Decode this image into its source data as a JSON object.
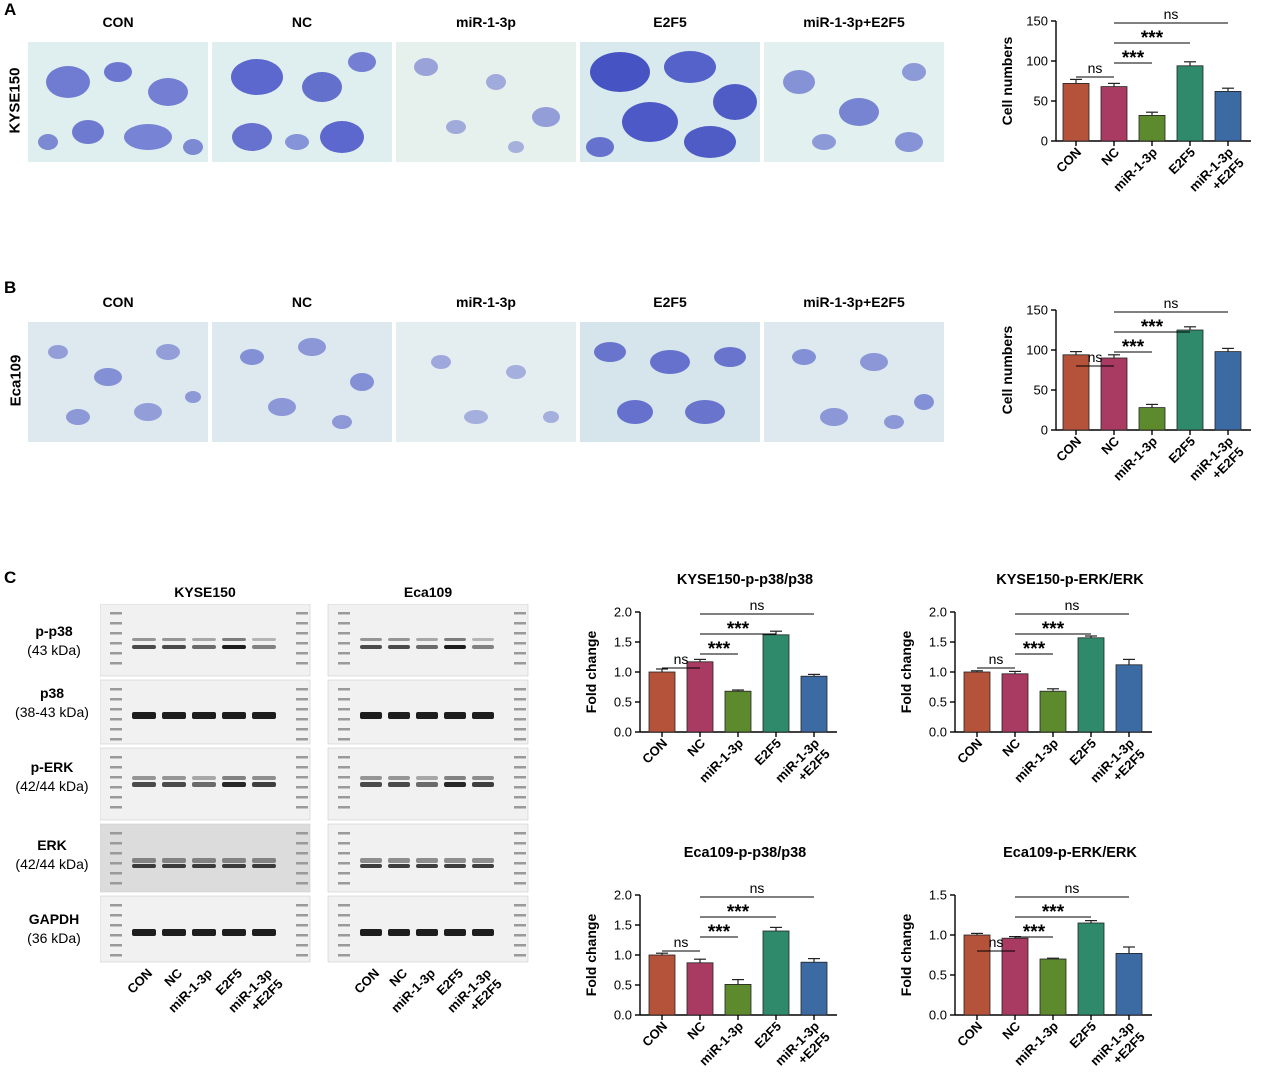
{
  "panels": {
    "A": {
      "letter": "A",
      "row_label": "KYSE150"
    },
    "B": {
      "letter": "B",
      "row_label": "Eca109"
    },
    "C": {
      "letter": "C"
    }
  },
  "photo_titles": [
    "CON",
    "NC",
    "miR-1-3p",
    "E2F5",
    "miR-1-3p+E2F5"
  ],
  "blot": {
    "titles": [
      "KYSE150",
      "Eca109"
    ],
    "rows": [
      {
        "name": "p-p38",
        "kda": "(43 kDa)"
      },
      {
        "name": "p38",
        "kda": "(38-43 kDa)"
      },
      {
        "name": "p-ERK",
        "kda": "(42/44 kDa)"
      },
      {
        "name": "ERK",
        "kda": "(42/44 kDa)"
      },
      {
        "name": "GAPDH",
        "kda": "(36 kDa)"
      }
    ],
    "lanes": [
      "CON",
      "NC",
      "miR-1-3p",
      "E2F5",
      "miR-1-3p\n+E2F5"
    ]
  },
  "chart_data": [
    {
      "id": "A",
      "type": "bar",
      "title": "",
      "categories": [
        "CON",
        "NC",
        "miR-1-3p",
        "E2F5",
        "miR-1-3p\n+E2F5"
      ],
      "values": [
        72,
        68,
        32,
        94,
        62
      ],
      "errors": [
        5,
        4,
        4,
        5,
        4
      ],
      "ylabel": "Cell numbers",
      "ylim": [
        0,
        150
      ],
      "yticks": [
        "0",
        "50",
        "100",
        "150"
      ],
      "colors": [
        "#b5533a",
        "#a93a62",
        "#5e8a2e",
        "#2f8a6b",
        "#3c6aa3"
      ],
      "significance": [
        {
          "from": 1,
          "to": 4,
          "label": "ns"
        },
        {
          "from": 1,
          "to": 3,
          "label": "***"
        },
        {
          "from": 1,
          "to": 2,
          "label": "***"
        },
        {
          "from": 0,
          "to": 1,
          "label": "ns"
        }
      ]
    },
    {
      "id": "B",
      "type": "bar",
      "title": "",
      "categories": [
        "CON",
        "NC",
        "miR-1-3p",
        "E2F5",
        "miR-1-3p\n+E2F5"
      ],
      "values": [
        94,
        90,
        28,
        125,
        98
      ],
      "errors": [
        4,
        4,
        4,
        4,
        4
      ],
      "ylabel": "Cell numbers",
      "ylim": [
        0,
        150
      ],
      "yticks": [
        "0",
        "50",
        "100",
        "150"
      ],
      "colors": [
        "#b5533a",
        "#a93a62",
        "#5e8a2e",
        "#2f8a6b",
        "#3c6aa3"
      ],
      "significance": [
        {
          "from": 1,
          "to": 4,
          "label": "ns"
        },
        {
          "from": 1,
          "to": 3,
          "label": "***"
        },
        {
          "from": 1,
          "to": 2,
          "label": "***"
        },
        {
          "from": 0,
          "to": 1,
          "label": "ns"
        }
      ]
    },
    {
      "id": "C1",
      "type": "bar",
      "title": "KYSE150-p-p38/p38",
      "categories": [
        "CON",
        "NC",
        "miR-1-3p",
        "E2F5",
        "miR-1-3p\n+E2F5"
      ],
      "values": [
        1.0,
        1.17,
        0.68,
        1.62,
        0.93
      ],
      "errors": [
        0.05,
        0.04,
        0.02,
        0.06,
        0.03
      ],
      "ylabel": "Fold change",
      "ylim": [
        0,
        2.0
      ],
      "yticks": [
        "0.0",
        "0.5",
        "1.0",
        "1.5",
        "2.0"
      ],
      "colors": [
        "#b5533a",
        "#a93a62",
        "#5e8a2e",
        "#2f8a6b",
        "#3c6aa3"
      ],
      "significance": [
        {
          "from": 1,
          "to": 4,
          "label": "ns"
        },
        {
          "from": 1,
          "to": 3,
          "label": "***"
        },
        {
          "from": 1,
          "to": 2,
          "label": "***"
        },
        {
          "from": 0,
          "to": 1,
          "label": "ns"
        }
      ]
    },
    {
      "id": "C2",
      "type": "bar",
      "title": "KYSE150-p-ERK/ERK",
      "categories": [
        "CON",
        "NC",
        "miR-1-3p",
        "E2F5",
        "miR-1-3p\n+E2F5"
      ],
      "values": [
        1.0,
        0.97,
        0.68,
        1.57,
        1.12
      ],
      "errors": [
        0.02,
        0.04,
        0.04,
        0.03,
        0.09
      ],
      "ylabel": "Fold change",
      "ylim": [
        0,
        2.0
      ],
      "yticks": [
        "0.0",
        "0.5",
        "1.0",
        "1.5",
        "2.0"
      ],
      "colors": [
        "#b5533a",
        "#a93a62",
        "#5e8a2e",
        "#2f8a6b",
        "#3c6aa3"
      ],
      "significance": [
        {
          "from": 1,
          "to": 4,
          "label": "ns"
        },
        {
          "from": 1,
          "to": 3,
          "label": "***"
        },
        {
          "from": 1,
          "to": 2,
          "label": "***"
        },
        {
          "from": 0,
          "to": 1,
          "label": "ns"
        }
      ]
    },
    {
      "id": "C3",
      "type": "bar",
      "title": "Eca109-p-p38/p38",
      "categories": [
        "CON",
        "NC",
        "miR-1-3p",
        "E2F5",
        "miR-1-3p\n+E2F5"
      ],
      "values": [
        1.0,
        0.87,
        0.51,
        1.4,
        0.88
      ],
      "errors": [
        0.03,
        0.06,
        0.08,
        0.06,
        0.06
      ],
      "ylabel": "Fold change",
      "ylim": [
        0,
        2.0
      ],
      "yticks": [
        "0.0",
        "0.5",
        "1.0",
        "1.5",
        "2.0"
      ],
      "colors": [
        "#b5533a",
        "#a93a62",
        "#5e8a2e",
        "#2f8a6b",
        "#3c6aa3"
      ],
      "significance": [
        {
          "from": 1,
          "to": 4,
          "label": "ns"
        },
        {
          "from": 1,
          "to": 3,
          "label": "***"
        },
        {
          "from": 1,
          "to": 2,
          "label": "***"
        },
        {
          "from": 0,
          "to": 1,
          "label": "ns"
        }
      ]
    },
    {
      "id": "C4",
      "type": "bar",
      "title": "Eca109-p-ERK/ERK",
      "categories": [
        "CON",
        "NC",
        "miR-1-3p",
        "E2F5",
        "miR-1-3p\n+E2F5"
      ],
      "values": [
        1.0,
        0.96,
        0.7,
        1.15,
        0.77
      ],
      "errors": [
        0.02,
        0.02,
        0.01,
        0.03,
        0.08
      ],
      "ylabel": "Fold change",
      "ylim": [
        0,
        1.5
      ],
      "yticks": [
        "0.0",
        "0.5",
        "1.0",
        "1.5"
      ],
      "colors": [
        "#b5533a",
        "#a93a62",
        "#5e8a2e",
        "#2f8a6b",
        "#3c6aa3"
      ],
      "significance": [
        {
          "from": 1,
          "to": 4,
          "label": "ns"
        },
        {
          "from": 1,
          "to": 3,
          "label": "***"
        },
        {
          "from": 1,
          "to": 2,
          "label": "***"
        },
        {
          "from": 0,
          "to": 1,
          "label": "ns"
        }
      ]
    }
  ]
}
